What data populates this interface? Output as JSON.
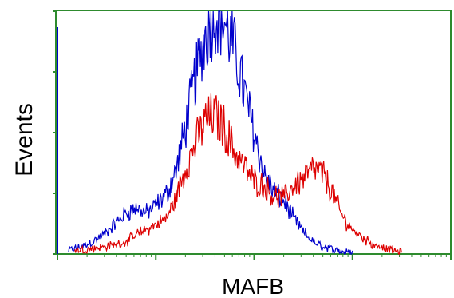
{
  "chart_data": {
    "type": "line",
    "title": "",
    "xlabel": "MAFB",
    "ylabel": "Events",
    "x_scale": "log",
    "xlim": [
      1,
      10000
    ],
    "ylim": [
      0,
      100
    ],
    "grid": false,
    "legend": "none",
    "frame_color": "#2e8b2e",
    "series": [
      {
        "color": "#0000cc",
        "points": [
          [
            1.3,
            1.5
          ],
          [
            1.6,
            2.5
          ],
          [
            2.0,
            4
          ],
          [
            2.5,
            6
          ],
          [
            3.2,
            9
          ],
          [
            4.0,
            13
          ],
          [
            5.0,
            17
          ],
          [
            6.3,
            19
          ],
          [
            8.0,
            17
          ],
          [
            10,
            20
          ],
          [
            13,
            25
          ],
          [
            16,
            34
          ],
          [
            20,
            52
          ],
          [
            25,
            72
          ],
          [
            32,
            90
          ],
          [
            40,
            100
          ],
          [
            50,
            96
          ],
          [
            63,
            84
          ],
          [
            80,
            66
          ],
          [
            100,
            50
          ],
          [
            126,
            33
          ],
          [
            158,
            26
          ],
          [
            200,
            22
          ],
          [
            250,
            15
          ],
          [
            316,
            9
          ],
          [
            400,
            5
          ],
          [
            500,
            3
          ],
          [
            630,
            2
          ],
          [
            800,
            1
          ],
          [
            1000,
            0.5
          ]
        ]
      },
      {
        "color": "#dd0000",
        "points": [
          [
            1.5,
            1.5
          ],
          [
            2.0,
            2
          ],
          [
            3.0,
            3
          ],
          [
            4.0,
            4
          ],
          [
            5.0,
            5
          ],
          [
            6.3,
            8
          ],
          [
            8.0,
            10
          ],
          [
            10,
            12
          ],
          [
            13,
            15
          ],
          [
            16,
            23
          ],
          [
            20,
            35
          ],
          [
            25,
            45
          ],
          [
            32,
            55
          ],
          [
            40,
            57
          ],
          [
            50,
            52
          ],
          [
            63,
            42
          ],
          [
            80,
            36
          ],
          [
            100,
            30
          ],
          [
            126,
            28
          ],
          [
            158,
            24
          ],
          [
            200,
            23
          ],
          [
            250,
            28
          ],
          [
            316,
            31
          ],
          [
            400,
            35
          ],
          [
            500,
            33
          ],
          [
            630,
            25
          ],
          [
            800,
            15
          ],
          [
            1000,
            10
          ],
          [
            1260,
            7
          ],
          [
            1580,
            4
          ],
          [
            2000,
            3
          ],
          [
            2500,
            1.5
          ],
          [
            3160,
            0.8
          ]
        ]
      }
    ]
  }
}
